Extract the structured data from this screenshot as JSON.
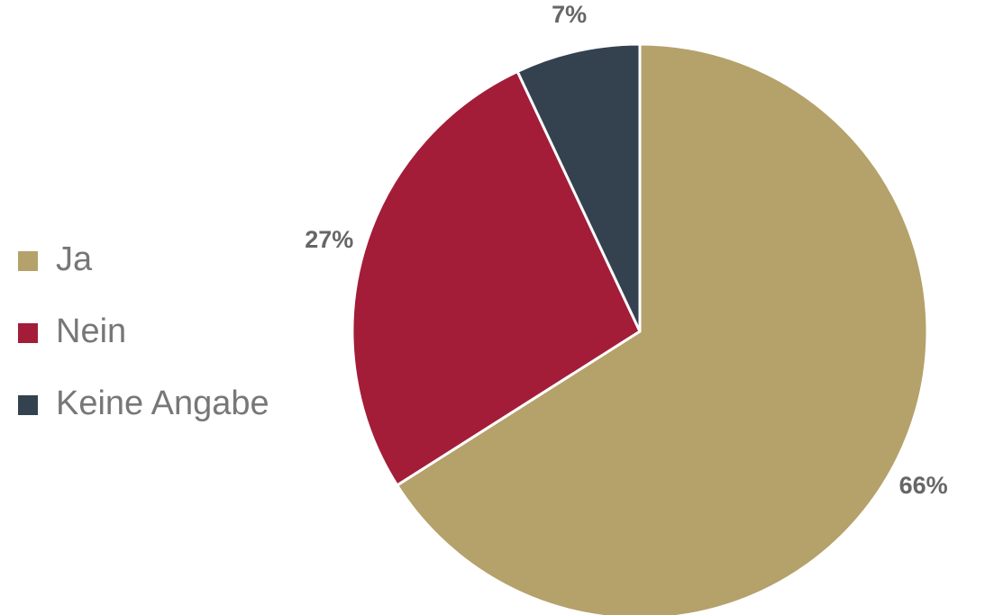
{
  "chart_data": {
    "type": "pie",
    "categories": [
      "Ja",
      "Nein",
      "Keine Angabe"
    ],
    "values": [
      66,
      27,
      7
    ],
    "value_labels": [
      "66%",
      "27%",
      "7%"
    ],
    "colors": [
      "#b5a16a",
      "#a31d38",
      "#34424f"
    ],
    "legend": "left"
  }
}
